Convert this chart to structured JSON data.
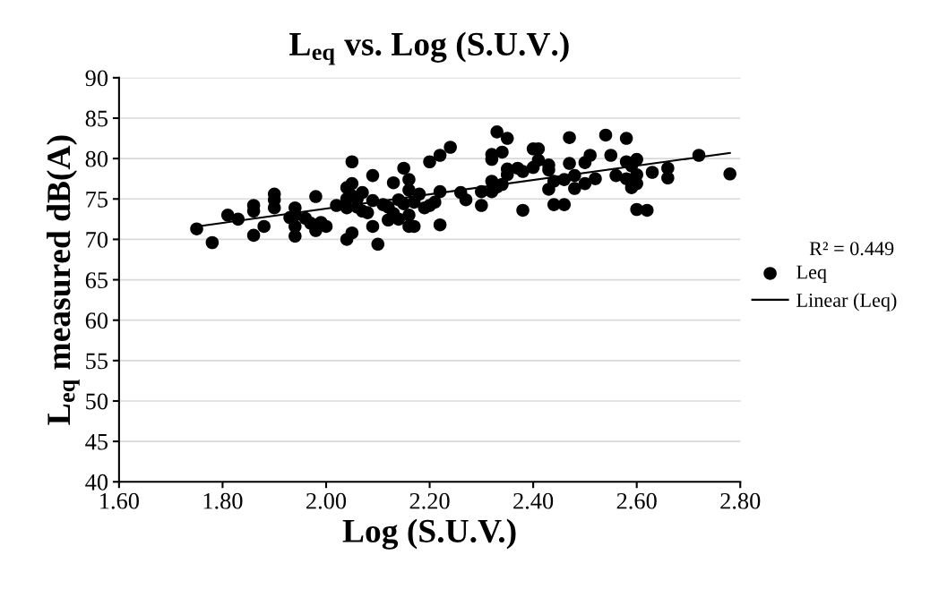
{
  "chart_data": {
    "type": "scatter",
    "title": "L$_{eq}$ vs. Log (S.U.V.)",
    "xlabel": "Log (S.U.V.)",
    "ylabel": "L$_{eq}$ measured dB(A)",
    "annotations": [
      "R² = 0.449"
    ],
    "xlim": [
      1.6,
      2.8
    ],
    "xticks": [
      {
        "value": 1.6,
        "label": "1.60"
      },
      {
        "value": 1.8,
        "label": "1.80"
      },
      {
        "value": 2.0,
        "label": "2.00"
      },
      {
        "value": 2.2,
        "label": "2.20"
      },
      {
        "value": 2.4,
        "label": "2.40"
      },
      {
        "value": 2.6,
        "label": "2.60"
      },
      {
        "value": 2.8,
        "label": "2.80"
      }
    ],
    "ylim": [
      40,
      90
    ],
    "yticks": [
      40,
      45,
      50,
      55,
      60,
      65,
      70,
      75,
      80,
      85,
      90
    ],
    "grid": "y",
    "legend": "right",
    "series": [
      {
        "name": "Leq",
        "color": "#000000",
        "marker": "circle",
        "x": [
          1.75,
          1.78,
          1.81,
          1.83,
          1.86,
          1.86,
          1.86,
          1.88,
          1.9,
          1.9,
          1.9,
          1.93,
          1.94,
          1.94,
          1.94,
          1.94,
          1.96,
          1.97,
          1.98,
          1.98,
          1.99,
          2.0,
          2.02,
          2.04,
          2.04,
          2.04,
          2.04,
          2.05,
          2.05,
          2.05,
          2.05,
          2.06,
          2.06,
          2.07,
          2.07,
          2.08,
          2.09,
          2.09,
          2.09,
          2.1,
          2.11,
          2.12,
          2.12,
          2.13,
          2.13,
          2.14,
          2.14,
          2.15,
          2.15,
          2.16,
          2.16,
          2.16,
          2.16,
          2.17,
          2.17,
          2.18,
          2.19,
          2.2,
          2.2,
          2.21,
          2.22,
          2.22,
          2.22,
          2.24,
          2.26,
          2.27,
          2.3,
          2.3,
          2.32,
          2.32,
          2.32,
          2.32,
          2.33,
          2.33,
          2.34,
          2.34,
          2.35,
          2.35,
          2.35,
          2.37,
          2.38,
          2.38,
          2.4,
          2.4,
          2.41,
          2.41,
          2.43,
          2.43,
          2.43,
          2.44,
          2.44,
          2.46,
          2.46,
          2.47,
          2.47,
          2.48,
          2.48,
          2.5,
          2.5,
          2.51,
          2.52,
          2.54,
          2.55,
          2.56,
          2.58,
          2.58,
          2.58,
          2.59,
          2.59,
          2.6,
          2.6,
          2.6,
          2.6,
          2.62,
          2.63,
          2.66,
          2.66,
          2.72,
          2.78
        ],
        "values": [
          71.3,
          69.6,
          73.0,
          72.5,
          74.2,
          73.5,
          70.5,
          71.6,
          75.6,
          74.9,
          73.9,
          72.7,
          73.9,
          73.0,
          71.6,
          70.4,
          72.6,
          72.0,
          75.3,
          71.1,
          72.1,
          71.6,
          74.2,
          76.4,
          75.0,
          73.9,
          70.0,
          79.6,
          76.9,
          75.4,
          70.8,
          75.0,
          74.0,
          75.8,
          73.5,
          73.3,
          77.9,
          74.8,
          71.6,
          69.4,
          74.3,
          74.0,
          72.4,
          73.2,
          77.0,
          72.5,
          74.9,
          78.8,
          74.4,
          77.4,
          76.1,
          73.0,
          71.6,
          74.6,
          71.6,
          75.6,
          73.9,
          74.2,
          79.6,
          74.6,
          80.4,
          75.9,
          71.8,
          81.4,
          75.8,
          74.9,
          74.2,
          75.9,
          80.5,
          79.9,
          77.2,
          75.9,
          76.5,
          83.3,
          80.8,
          76.8,
          82.5,
          78.7,
          78.0,
          78.8,
          73.6,
          78.4,
          81.2,
          78.9,
          81.2,
          79.8,
          79.2,
          78.6,
          76.2,
          74.3,
          77.2,
          77.4,
          74.3,
          82.6,
          79.4,
          76.3,
          77.9,
          79.5,
          76.9,
          80.4,
          77.5,
          82.9,
          80.4,
          77.9,
          82.5,
          79.6,
          77.5,
          79.1,
          76.4,
          78.0,
          76.9,
          79.9,
          73.7,
          73.6,
          78.3,
          78.8,
          77.6,
          80.4,
          78.1
        ]
      },
      {
        "name": "Linear (Leq)",
        "type": "line",
        "color": "#000000",
        "x": [
          1.75,
          2.78
        ],
        "values": [
          71.6,
          80.7
        ]
      }
    ]
  }
}
